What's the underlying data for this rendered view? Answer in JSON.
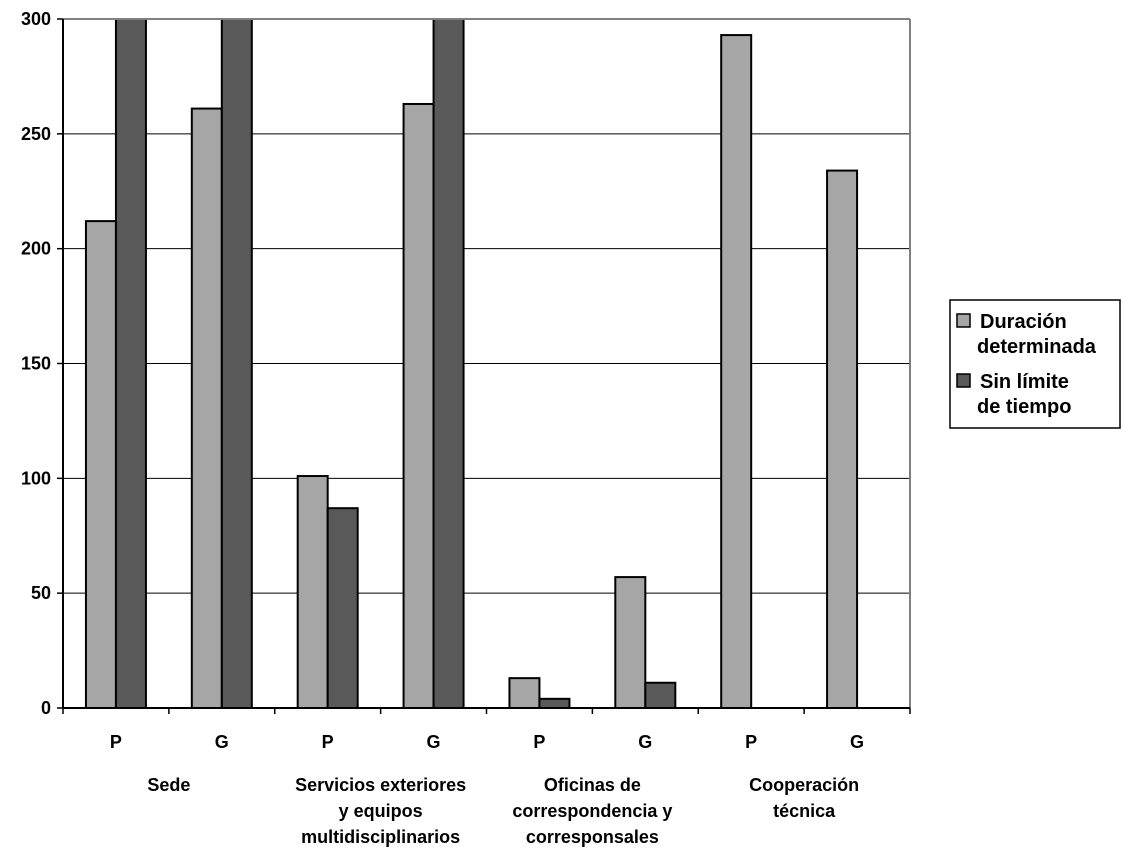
{
  "chart_data": {
    "type": "bar",
    "title": "",
    "xlabel": "",
    "ylabel": "",
    "ylim": [
      0,
      300
    ],
    "yticks": [
      0,
      50,
      100,
      150,
      200,
      250,
      300
    ],
    "grid": true,
    "legend_position": "right",
    "categories": [
      "P",
      "G",
      "P",
      "G",
      "P",
      "G",
      "P",
      "G"
    ],
    "groups": [
      {
        "label_lines": [
          "Sede"
        ]
      },
      {
        "label_lines": [
          "Servicios exteriores",
          "y equipos",
          "multidisciplinarios"
        ]
      },
      {
        "label_lines": [
          "Oficinas de",
          "correspondencia y",
          "corresponsales"
        ]
      },
      {
        "label_lines": [
          "Cooperación",
          "técnica"
        ]
      }
    ],
    "series": [
      {
        "name_lines": [
          "Duración",
          "determinada"
        ],
        "color": "#a6a6a6",
        "values": [
          212,
          261,
          101,
          263,
          13,
          57,
          293,
          234
        ]
      },
      {
        "name_lines": [
          "Sin límite",
          "de tiempo"
        ],
        "color": "#595959",
        "values": [
          300,
          300,
          87,
          300,
          4,
          11,
          0,
          0
        ]
      }
    ],
    "plot_background": "#ffffff",
    "gridline_color": "#000000",
    "frame_color": "#808080"
  }
}
